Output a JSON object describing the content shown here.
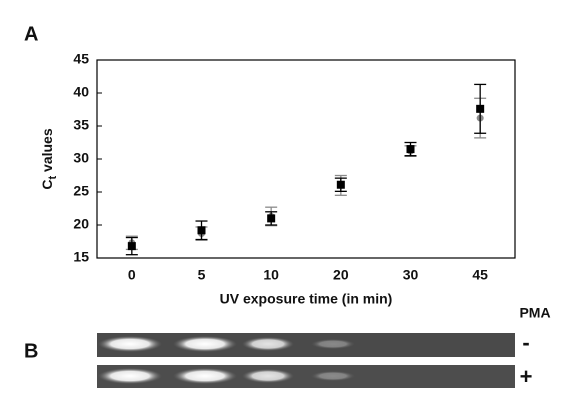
{
  "chart_data": {
    "type": "scatter",
    "panel_label": "A",
    "y_label": [
      "C",
      "t",
      " values"
    ],
    "x_label": "UV exposure time (in min)",
    "categories": [
      "0",
      "5",
      "10",
      "20",
      "30",
      "45"
    ],
    "series": [
      {
        "color": "#8a8a8a",
        "marker": "circle",
        "values": [
          17.3,
          18.7,
          21.3,
          26.0,
          31.2,
          36.2
        ],
        "errors": [
          1.0,
          1.0,
          1.4,
          1.5,
          0.8,
          3.0
        ]
      },
      {
        "color": "#000000",
        "marker": "square",
        "values": [
          16.8,
          19.2,
          21.0,
          26.1,
          31.5,
          37.6
        ],
        "errors": [
          1.3,
          1.4,
          1.0,
          1.0,
          1.0,
          3.7
        ]
      }
    ],
    "ylim": [
      15,
      45
    ],
    "yticks": [
      15,
      20,
      25,
      30,
      35,
      40,
      45
    ],
    "grid": false
  },
  "panel_b": {
    "panel_label": "B",
    "column_header": "PMA",
    "row_labels": [
      "-",
      "+"
    ]
  }
}
